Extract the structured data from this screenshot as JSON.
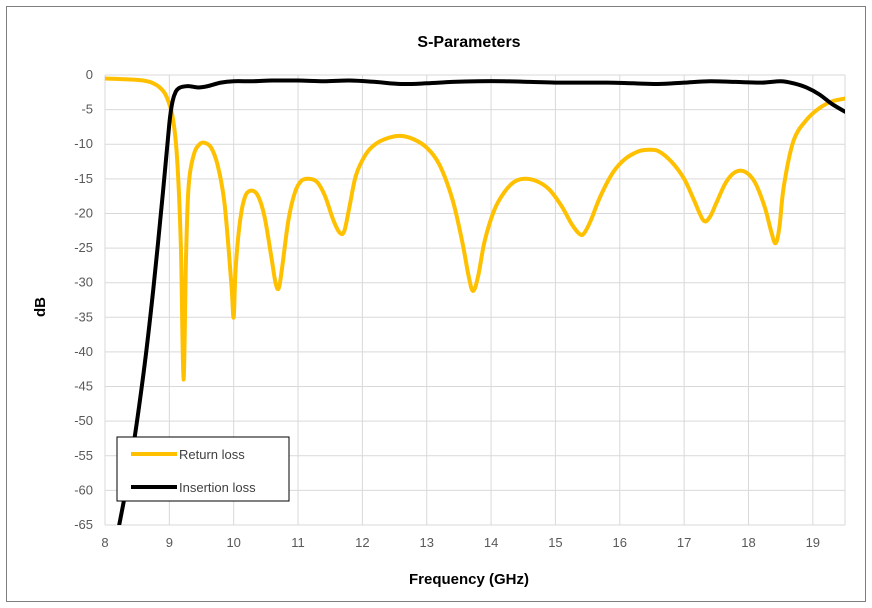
{
  "chart_data": {
    "type": "line",
    "title": "S-Parameters",
    "xlabel": "Frequency (GHz)",
    "ylabel": "dB",
    "xlim": [
      8,
      19.5
    ],
    "ylim": [
      -65,
      0
    ],
    "x_ticks": [
      8,
      9,
      10,
      11,
      12,
      13,
      14,
      15,
      16,
      17,
      18,
      19
    ],
    "y_ticks": [
      0,
      -5,
      -10,
      -15,
      -20,
      -25,
      -30,
      -35,
      -40,
      -45,
      -50,
      -55,
      -60,
      -65
    ],
    "grid": true,
    "legend_position": "bottom-left",
    "series": [
      {
        "name": "Return loss",
        "color": "#FFC000",
        "x": [
          8.0,
          8.5,
          8.65,
          8.75,
          8.85,
          8.95,
          9.05,
          9.12,
          9.18,
          9.22,
          9.26,
          9.3,
          9.38,
          9.47,
          9.55,
          9.65,
          9.75,
          9.85,
          9.92,
          9.97,
          10.0,
          10.03,
          10.1,
          10.18,
          10.28,
          10.38,
          10.48,
          10.58,
          10.65,
          10.7,
          10.75,
          10.85,
          10.95,
          11.05,
          11.18,
          11.3,
          11.42,
          11.55,
          11.65,
          11.72,
          11.8,
          11.9,
          12.05,
          12.2,
          12.4,
          12.6,
          12.8,
          13.0,
          13.2,
          13.4,
          13.55,
          13.65,
          13.72,
          13.8,
          13.9,
          14.05,
          14.2,
          14.35,
          14.5,
          14.7,
          14.9,
          15.1,
          15.25,
          15.38,
          15.45,
          15.55,
          15.7,
          15.9,
          16.1,
          16.3,
          16.45,
          16.6,
          16.8,
          17.0,
          17.15,
          17.3,
          17.4,
          17.5,
          17.65,
          17.8,
          17.95,
          18.1,
          18.25,
          18.35,
          18.42,
          18.48,
          18.55,
          18.7,
          18.9,
          19.1,
          19.3,
          19.5
        ],
        "y": [
          -0.5,
          -0.7,
          -0.9,
          -1.2,
          -1.8,
          -3.0,
          -6.0,
          -12.0,
          -25.0,
          -44.0,
          -26.0,
          -16.0,
          -11.5,
          -10.0,
          -9.8,
          -10.5,
          -13.0,
          -18.0,
          -25.0,
          -31.0,
          -35.0,
          -28.0,
          -21.0,
          -17.5,
          -16.7,
          -17.5,
          -20.5,
          -26.0,
          -30.0,
          -30.8,
          -28.0,
          -21.0,
          -17.0,
          -15.3,
          -15.0,
          -15.5,
          -17.5,
          -21.0,
          -22.8,
          -22.5,
          -19.0,
          -14.5,
          -11.5,
          -10.0,
          -9.1,
          -8.8,
          -9.3,
          -10.5,
          -13.0,
          -18.0,
          -24.0,
          -29.0,
          -31.2,
          -29.0,
          -24.0,
          -19.5,
          -17.0,
          -15.5,
          -15.0,
          -15.3,
          -16.5,
          -19.0,
          -21.5,
          -23.0,
          -22.8,
          -21.0,
          -17.5,
          -14.0,
          -12.0,
          -11.0,
          -10.8,
          -11.0,
          -12.5,
          -15.0,
          -18.0,
          -21.0,
          -20.5,
          -18.5,
          -15.5,
          -14.0,
          -14.0,
          -15.5,
          -19.0,
          -22.5,
          -24.3,
          -22.0,
          -16.0,
          -9.5,
          -6.5,
          -4.8,
          -3.8,
          -3.4
        ]
      },
      {
        "name": "Insertion loss",
        "color": "#000000",
        "x": [
          8.2,
          8.4,
          8.6,
          8.75,
          8.9,
          9.0,
          9.05,
          9.1,
          9.15,
          9.2,
          9.3,
          9.45,
          9.6,
          9.8,
          10.0,
          10.3,
          10.6,
          11.0,
          11.4,
          11.8,
          12.2,
          12.6,
          13.0,
          13.4,
          13.8,
          14.2,
          14.6,
          15.0,
          15.4,
          15.8,
          16.2,
          16.6,
          17.0,
          17.4,
          17.8,
          18.2,
          18.5,
          18.7,
          18.9,
          19.1,
          19.3,
          19.5
        ],
        "y": [
          -66.0,
          -56.0,
          -43.0,
          -31.0,
          -17.0,
          -7.0,
          -3.8,
          -2.4,
          -1.9,
          -1.7,
          -1.6,
          -1.8,
          -1.6,
          -1.1,
          -0.9,
          -0.9,
          -0.8,
          -0.8,
          -0.9,
          -0.8,
          -1.0,
          -1.3,
          -1.2,
          -1.0,
          -0.9,
          -0.9,
          -1.0,
          -1.1,
          -1.1,
          -1.1,
          -1.2,
          -1.3,
          -1.1,
          -0.9,
          -1.0,
          -1.1,
          -0.9,
          -1.2,
          -1.8,
          -2.8,
          -4.2,
          -5.3
        ]
      }
    ]
  }
}
